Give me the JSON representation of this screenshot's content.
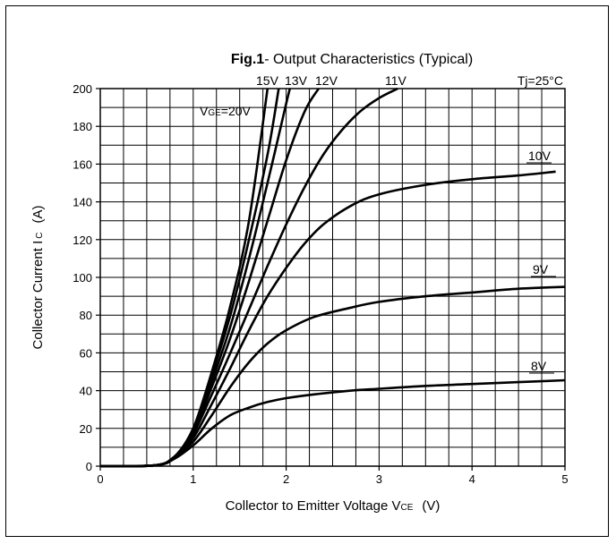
{
  "chart_data": {
    "type": "line",
    "title_bold": "Fig.1",
    "title_rest": "- Output Characteristics (Typical)",
    "annotation": "Tj=25°C",
    "xlabel": "Collector to Emitter Voltage V",
    "xlabel_sub": "CE",
    "xlabel_unit": "(V)",
    "ylabel": "Collector Current I",
    "ylabel_sub": "C",
    "ylabel_unit": "(A)",
    "xlim": [
      0,
      5
    ],
    "ylim": [
      0,
      200
    ],
    "x_ticks": [
      "0",
      "1",
      "2",
      "3",
      "4",
      "5"
    ],
    "y_ticks": [
      "0",
      "20",
      "40",
      "60",
      "80",
      "100",
      "120",
      "140",
      "160",
      "180",
      "200"
    ],
    "grid": true,
    "series": [
      {
        "name": "VGE=20V",
        "label_main": "V",
        "label_sub": "GE",
        "label_tail": "=20V",
        "points": [
          [
            0,
            0
          ],
          [
            0.6,
            0.5
          ],
          [
            0.8,
            5
          ],
          [
            1.0,
            20
          ],
          [
            1.2,
            50
          ],
          [
            1.4,
            85
          ],
          [
            1.6,
            130
          ],
          [
            1.8,
            200
          ]
        ]
      },
      {
        "name": "15V",
        "label_main": "15V",
        "points": [
          [
            0,
            0
          ],
          [
            0.6,
            0.5
          ],
          [
            0.8,
            5
          ],
          [
            1.0,
            20
          ],
          [
            1.2,
            48
          ],
          [
            1.4,
            80
          ],
          [
            1.6,
            120
          ],
          [
            1.8,
            165
          ],
          [
            1.92,
            200
          ]
        ]
      },
      {
        "name": "13V",
        "label_main": "13V",
        "points": [
          [
            0,
            0
          ],
          [
            0.6,
            0.5
          ],
          [
            0.8,
            5
          ],
          [
            1.0,
            19
          ],
          [
            1.2,
            45
          ],
          [
            1.4,
            74
          ],
          [
            1.6,
            110
          ],
          [
            1.8,
            150
          ],
          [
            2.0,
            192
          ],
          [
            2.04,
            200
          ]
        ]
      },
      {
        "name": "12V",
        "label_main": "12V",
        "points": [
          [
            0,
            0
          ],
          [
            0.6,
            0.5
          ],
          [
            0.8,
            5
          ],
          [
            1.0,
            18
          ],
          [
            1.2,
            42
          ],
          [
            1.4,
            68
          ],
          [
            1.6,
            98
          ],
          [
            1.8,
            130
          ],
          [
            2.0,
            162
          ],
          [
            2.2,
            188
          ],
          [
            2.35,
            200
          ]
        ]
      },
      {
        "name": "11V",
        "label_main": "11V",
        "points": [
          [
            0,
            0
          ],
          [
            0.6,
            0.5
          ],
          [
            0.8,
            5
          ],
          [
            1.0,
            17
          ],
          [
            1.2,
            38
          ],
          [
            1.4,
            60
          ],
          [
            1.6,
            83
          ],
          [
            1.8,
            106
          ],
          [
            2.0,
            128
          ],
          [
            2.2,
            148
          ],
          [
            2.4,
            165
          ],
          [
            2.6,
            178
          ],
          [
            2.8,
            188
          ],
          [
            3.0,
            195
          ],
          [
            3.2,
            200
          ]
        ]
      },
      {
        "name": "10V",
        "label_main": "10V",
        "points": [
          [
            0,
            0
          ],
          [
            0.6,
            0.5
          ],
          [
            0.8,
            5
          ],
          [
            1.0,
            15
          ],
          [
            1.2,
            33
          ],
          [
            1.4,
            52
          ],
          [
            1.6,
            72
          ],
          [
            1.8,
            90
          ],
          [
            2.0,
            105
          ],
          [
            2.2,
            118
          ],
          [
            2.4,
            128
          ],
          [
            2.7,
            138
          ],
          [
            3.0,
            144
          ],
          [
            3.5,
            149
          ],
          [
            4.0,
            152
          ],
          [
            4.5,
            154
          ],
          [
            4.9,
            156
          ]
        ]
      },
      {
        "name": "9V",
        "label_main": "9V",
        "points": [
          [
            0,
            0
          ],
          [
            0.6,
            0.5
          ],
          [
            0.8,
            5
          ],
          [
            1.0,
            13
          ],
          [
            1.2,
            27
          ],
          [
            1.4,
            42
          ],
          [
            1.6,
            55
          ],
          [
            1.8,
            65
          ],
          [
            2.0,
            72
          ],
          [
            2.3,
            79
          ],
          [
            2.7,
            84
          ],
          [
            3.0,
            87
          ],
          [
            3.5,
            90
          ],
          [
            4.0,
            92
          ],
          [
            4.5,
            94
          ],
          [
            5.0,
            95
          ]
        ]
      },
      {
        "name": "8V",
        "label_main": "8V",
        "points": [
          [
            0,
            0
          ],
          [
            0.6,
            0.5
          ],
          [
            0.8,
            4
          ],
          [
            1.0,
            11
          ],
          [
            1.2,
            20
          ],
          [
            1.4,
            27
          ],
          [
            1.6,
            31
          ],
          [
            1.8,
            34
          ],
          [
            2.0,
            36
          ],
          [
            2.3,
            38
          ],
          [
            2.7,
            40
          ],
          [
            3.0,
            41
          ],
          [
            3.5,
            42.5
          ],
          [
            4.0,
            43.5
          ],
          [
            4.5,
            44.5
          ],
          [
            5.0,
            45.5
          ]
        ]
      }
    ]
  }
}
